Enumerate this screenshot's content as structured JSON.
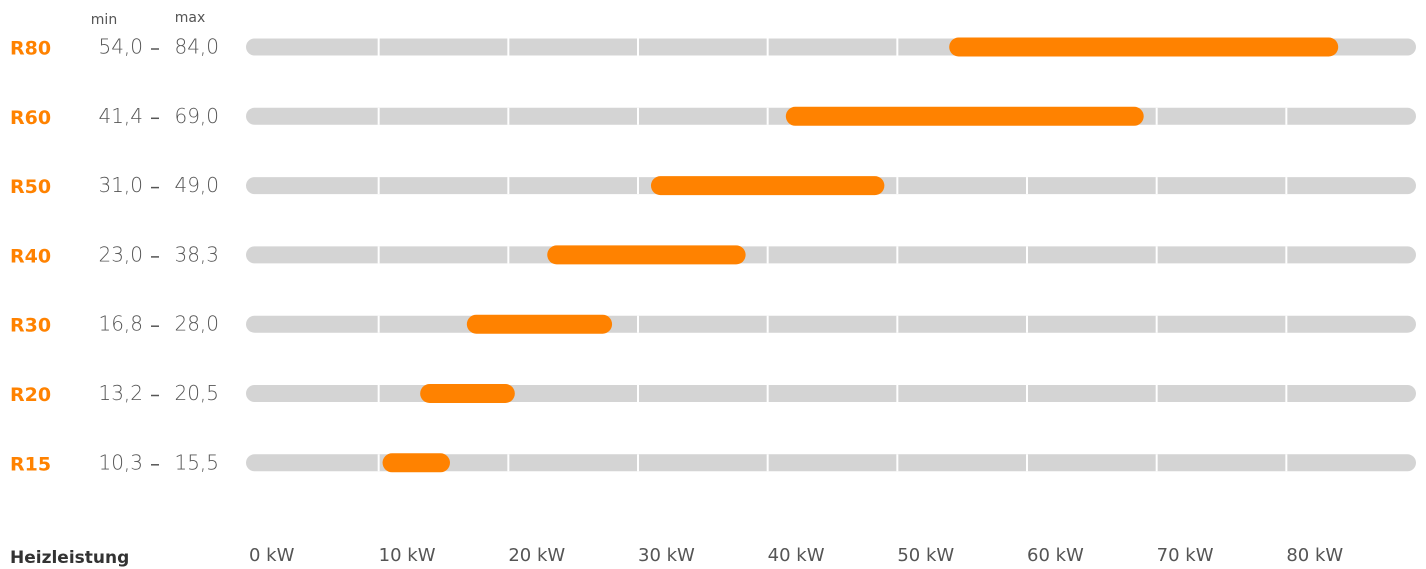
{
  "chart_data": {
    "type": "range-bar",
    "categories": [
      "R80",
      "R60",
      "R50",
      "R40",
      "R30",
      "R20",
      "R15"
    ],
    "series": [
      {
        "name": "min",
        "values": [
          54,
          41.4,
          31,
          23,
          16.8,
          13.2,
          10.3
        ],
        "value_labels": [
          "54,0",
          "41,4",
          "31,0",
          "23,0",
          "16,8",
          "13,2",
          "10,3"
        ]
      },
      {
        "name": "max",
        "values": [
          84,
          69,
          49,
          38.3,
          28,
          20.5,
          15.5
        ],
        "value_labels": [
          "84,0",
          "69,0",
          "49,0",
          "38,3",
          "28,0",
          "20,5",
          "15,5"
        ]
      }
    ],
    "color": "#ff8200",
    "track_color": "#d4d4d4",
    "xlabel": "Heizleistung",
    "xlim": [
      0,
      90
    ],
    "xticks": [
      {
        "value": 0,
        "label": "0 kW"
      },
      {
        "value": 10,
        "label": "10 kW"
      },
      {
        "value": 20,
        "label": "20 kW"
      },
      {
        "value": 30,
        "label": "30 kW"
      },
      {
        "value": 40,
        "label": "40 kW"
      },
      {
        "value": 50,
        "label": "50 kW"
      },
      {
        "value": 60,
        "label": "60 kW"
      },
      {
        "value": 70,
        "label": "70 kW"
      },
      {
        "value": 80,
        "label": "80 kW"
      }
    ],
    "grid": true
  }
}
